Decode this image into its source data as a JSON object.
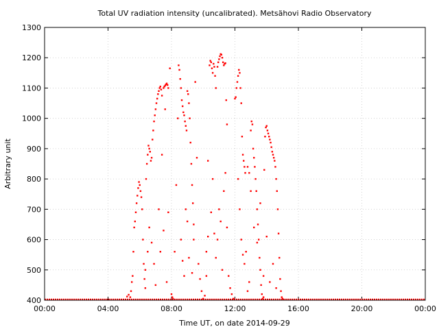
{
  "chart_data": {
    "type": "scatter",
    "title": "Total UV radiation intensity (uncalibrated). Metsähovi Radio Observatory",
    "xlabel": "Time UT, on date 2014-09-29",
    "ylabel": "Arbitrary unit",
    "xlim": [
      0,
      24
    ],
    "ylim": [
      400,
      1300
    ],
    "xticks": [
      0,
      4,
      8,
      12,
      16,
      20,
      24
    ],
    "xtick_labels": [
      "00:00",
      "04:00",
      "08:00",
      "12:00",
      "16:00",
      "20:00",
      "00:00"
    ],
    "yticks": [
      400,
      500,
      600,
      700,
      800,
      900,
      1000,
      1100,
      1200,
      1300
    ],
    "grid": true,
    "marker_color": "#ff0000",
    "series": [
      {
        "x_unit": "hours UT",
        "baseline": {
          "value": 400,
          "from": 0,
          "to": 24
        },
        "points": [
          [
            5.2,
            412
          ],
          [
            5.3,
            418
          ],
          [
            5.4,
            410
          ],
          [
            5.45,
            430
          ],
          [
            5.5,
            460
          ],
          [
            5.55,
            480
          ],
          [
            5.6,
            560
          ],
          [
            5.65,
            640
          ],
          [
            5.7,
            660
          ],
          [
            5.75,
            690
          ],
          [
            5.8,
            720
          ],
          [
            5.85,
            745
          ],
          [
            5.9,
            770
          ],
          [
            5.95,
            790
          ],
          [
            6.0,
            780
          ],
          [
            6.05,
            760
          ],
          [
            6.1,
            740
          ],
          [
            6.15,
            700
          ],
          [
            6.2,
            600
          ],
          [
            6.25,
            520
          ],
          [
            6.3,
            470
          ],
          [
            6.35,
            440
          ],
          [
            6.4,
            800
          ],
          [
            6.45,
            850
          ],
          [
            6.5,
            880
          ],
          [
            6.55,
            910
          ],
          [
            6.6,
            900
          ],
          [
            6.65,
            890
          ],
          [
            6.7,
            860
          ],
          [
            6.75,
            870
          ],
          [
            6.8,
            930
          ],
          [
            6.85,
            960
          ],
          [
            6.9,
            990
          ],
          [
            6.95,
            1010
          ],
          [
            7.0,
            1030
          ],
          [
            7.05,
            1050
          ],
          [
            7.1,
            1065
          ],
          [
            7.15,
            1080
          ],
          [
            7.2,
            1090
          ],
          [
            7.25,
            1100
          ],
          [
            7.3,
            1105
          ],
          [
            7.35,
            1095
          ],
          [
            7.4,
            1075
          ],
          [
            7.5,
            1100
          ],
          [
            7.55,
            1105
          ],
          [
            7.6,
            1108
          ],
          [
            7.65,
            1112
          ],
          [
            7.7,
            1115
          ],
          [
            7.75,
            1110
          ],
          [
            7.8,
            1100
          ],
          [
            6.35,
            500
          ],
          [
            6.5,
            560
          ],
          [
            6.6,
            640
          ],
          [
            6.75,
            590
          ],
          [
            6.9,
            520
          ],
          [
            7.0,
            450
          ],
          [
            7.2,
            700
          ],
          [
            7.3,
            560
          ],
          [
            7.4,
            880
          ],
          [
            7.5,
            630
          ],
          [
            7.6,
            1030
          ],
          [
            7.7,
            460
          ],
          [
            7.8,
            690
          ],
          [
            7.9,
            1165
          ],
          [
            8.0,
            420
          ],
          [
            8.05,
            410
          ],
          [
            8.1,
            405
          ],
          [
            8.2,
            560
          ],
          [
            8.3,
            780
          ],
          [
            8.4,
            1000
          ],
          [
            8.45,
            1175
          ],
          [
            8.5,
            1160
          ],
          [
            8.55,
            1130
          ],
          [
            8.6,
            1100
          ],
          [
            8.65,
            1060
          ],
          [
            8.7,
            1040
          ],
          [
            8.75,
            1020
          ],
          [
            8.8,
            1010
          ],
          [
            8.85,
            990
          ],
          [
            8.9,
            975
          ],
          [
            8.95,
            960
          ],
          [
            9.0,
            1090
          ],
          [
            9.05,
            1080
          ],
          [
            9.1,
            1050
          ],
          [
            9.15,
            1000
          ],
          [
            9.2,
            920
          ],
          [
            9.25,
            850
          ],
          [
            9.3,
            780
          ],
          [
            9.35,
            720
          ],
          [
            9.4,
            650
          ],
          [
            8.6,
            600
          ],
          [
            8.7,
            530
          ],
          [
            8.8,
            480
          ],
          [
            8.9,
            700
          ],
          [
            9.0,
            660
          ],
          [
            9.1,
            540
          ],
          [
            9.3,
            490
          ],
          [
            9.4,
            600
          ],
          [
            9.5,
            1120
          ],
          [
            9.6,
            870
          ],
          [
            9.7,
            520
          ],
          [
            9.8,
            470
          ],
          [
            9.9,
            430
          ],
          [
            10.0,
            405
          ],
          [
            10.1,
            415
          ],
          [
            10.2,
            480
          ],
          [
            10.3,
            860
          ],
          [
            10.4,
            1175
          ],
          [
            10.45,
            1190
          ],
          [
            10.5,
            1185
          ],
          [
            10.55,
            1165
          ],
          [
            10.6,
            1150
          ],
          [
            10.65,
            1180
          ],
          [
            10.7,
            1170
          ],
          [
            10.75,
            1140
          ],
          [
            10.8,
            1100
          ],
          [
            10.9,
            1170
          ],
          [
            10.95,
            1185
          ],
          [
            11.0,
            1195
          ],
          [
            11.05,
            1205
          ],
          [
            11.1,
            1212
          ],
          [
            11.15,
            1210
          ],
          [
            11.2,
            1200
          ],
          [
            11.25,
            1185
          ],
          [
            11.3,
            1175
          ],
          [
            11.35,
            1180
          ],
          [
            11.4,
            1182
          ],
          [
            11.45,
            1060
          ],
          [
            11.5,
            980
          ],
          [
            10.2,
            560
          ],
          [
            10.3,
            610
          ],
          [
            10.5,
            690
          ],
          [
            10.6,
            800
          ],
          [
            10.7,
            620
          ],
          [
            10.8,
            540
          ],
          [
            10.9,
            600
          ],
          [
            11.0,
            700
          ],
          [
            11.1,
            660
          ],
          [
            11.2,
            500
          ],
          [
            11.3,
            760
          ],
          [
            11.4,
            820
          ],
          [
            11.5,
            640
          ],
          [
            11.6,
            480
          ],
          [
            11.7,
            440
          ],
          [
            11.8,
            420
          ],
          [
            11.9,
            405
          ],
          [
            12.0,
            1065
          ],
          [
            12.05,
            1070
          ],
          [
            12.1,
            1100
          ],
          [
            12.15,
            1120
          ],
          [
            12.2,
            1140
          ],
          [
            12.25,
            1160
          ],
          [
            12.3,
            1150
          ],
          [
            12.35,
            1100
          ],
          [
            12.4,
            1050
          ],
          [
            12.45,
            940
          ],
          [
            12.5,
            880
          ],
          [
            12.55,
            860
          ],
          [
            12.6,
            840
          ],
          [
            12.65,
            820
          ],
          [
            12.2,
            800
          ],
          [
            12.3,
            700
          ],
          [
            12.4,
            600
          ],
          [
            12.5,
            550
          ],
          [
            12.6,
            520
          ],
          [
            12.7,
            560
          ],
          [
            12.8,
            840
          ],
          [
            12.9,
            820
          ],
          [
            13.0,
            960
          ],
          [
            13.05,
            990
          ],
          [
            13.1,
            980
          ],
          [
            13.15,
            900
          ],
          [
            13.2,
            870
          ],
          [
            13.25,
            840
          ],
          [
            13.3,
            800
          ],
          [
            13.35,
            760
          ],
          [
            13.4,
            700
          ],
          [
            13.45,
            650
          ],
          [
            13.5,
            600
          ],
          [
            13.55,
            540
          ],
          [
            13.6,
            500
          ],
          [
            13.65,
            450
          ],
          [
            13.7,
            420
          ],
          [
            13.75,
            405
          ],
          [
            13.8,
            410
          ],
          [
            13.85,
            830
          ],
          [
            13.9,
            940
          ],
          [
            13.95,
            970
          ],
          [
            14.0,
            975
          ],
          [
            14.05,
            960
          ],
          [
            14.1,
            950
          ],
          [
            14.15,
            940
          ],
          [
            14.2,
            930
          ],
          [
            14.25,
            920
          ],
          [
            14.3,
            905
          ],
          [
            14.35,
            890
          ],
          [
            14.4,
            880
          ],
          [
            14.45,
            870
          ],
          [
            14.5,
            860
          ],
          [
            14.55,
            840
          ],
          [
            14.6,
            800
          ],
          [
            14.65,
            760
          ],
          [
            14.7,
            700
          ],
          [
            14.75,
            620
          ],
          [
            14.8,
            540
          ],
          [
            14.85,
            470
          ],
          [
            14.9,
            430
          ],
          [
            14.95,
            410
          ],
          [
            15.0,
            405
          ],
          [
            13.0,
            760
          ],
          [
            13.2,
            640
          ],
          [
            13.4,
            590
          ],
          [
            13.6,
            720
          ],
          [
            13.8,
            480
          ],
          [
            14.0,
            610
          ],
          [
            14.2,
            460
          ],
          [
            14.4,
            520
          ],
          [
            14.6,
            440
          ],
          [
            12.8,
            430
          ],
          [
            12.9,
            460
          ]
        ]
      }
    ]
  }
}
